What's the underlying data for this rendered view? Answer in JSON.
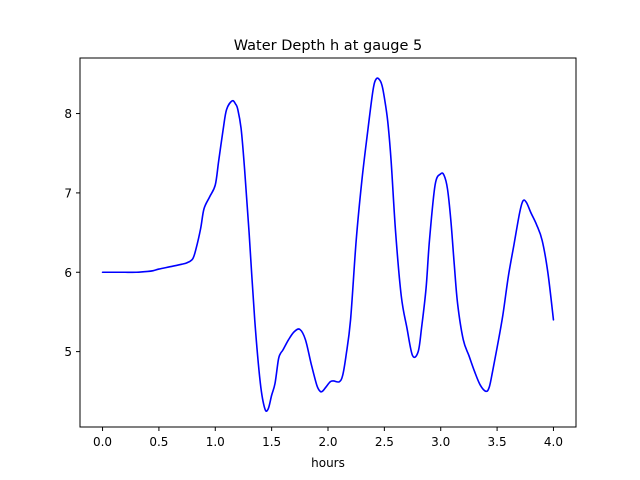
{
  "chart_data": {
    "type": "line",
    "title": "Water Depth h at gauge 5",
    "xlabel": "hours",
    "ylabel": "",
    "xlim": [
      -0.2,
      4.2
    ],
    "ylim": [
      4.05,
      8.7
    ],
    "xticks": [
      0.0,
      0.5,
      1.0,
      1.5,
      2.0,
      2.5,
      3.0,
      3.5,
      4.0
    ],
    "xtick_labels": [
      "0.0",
      "0.5",
      "1.0",
      "1.5",
      "2.0",
      "2.5",
      "3.0",
      "3.5",
      "4.0"
    ],
    "yticks": [
      5,
      6,
      7,
      8
    ],
    "ytick_labels": [
      "5",
      "6",
      "7",
      "8"
    ],
    "grid": false,
    "series": [
      {
        "color": "#0000ff",
        "x": [
          0.0,
          0.1,
          0.2,
          0.3,
          0.4,
          0.45,
          0.5,
          0.6,
          0.7,
          0.75,
          0.8,
          0.83,
          0.87,
          0.9,
          0.95,
          1.0,
          1.03,
          1.07,
          1.1,
          1.15,
          1.18,
          1.2,
          1.23,
          1.26,
          1.3,
          1.35,
          1.4,
          1.44,
          1.47,
          1.5,
          1.53,
          1.56,
          1.58,
          1.6,
          1.65,
          1.7,
          1.75,
          1.8,
          1.85,
          1.9,
          1.93,
          1.95,
          1.98,
          2.02,
          2.05,
          2.1,
          2.13,
          2.16,
          2.2,
          2.25,
          2.3,
          2.35,
          2.4,
          2.43,
          2.46,
          2.48,
          2.5,
          2.53,
          2.56,
          2.6,
          2.65,
          2.7,
          2.75,
          2.8,
          2.83,
          2.87,
          2.9,
          2.95,
          3.0,
          3.03,
          3.06,
          3.09,
          3.12,
          3.15,
          3.2,
          3.25,
          3.3,
          3.35,
          3.4,
          3.43,
          3.46,
          3.5,
          3.55,
          3.6,
          3.65,
          3.7,
          3.73,
          3.76,
          3.8,
          3.85,
          3.9,
          3.95,
          4.0
        ],
        "y": [
          6.0,
          6.0,
          6.0,
          6.0,
          6.01,
          6.02,
          6.04,
          6.07,
          6.1,
          6.12,
          6.17,
          6.3,
          6.55,
          6.8,
          6.95,
          7.1,
          7.4,
          7.8,
          8.05,
          8.16,
          8.12,
          8.05,
          7.8,
          7.3,
          6.5,
          5.4,
          4.6,
          4.28,
          4.28,
          4.45,
          4.6,
          4.9,
          4.98,
          5.02,
          5.15,
          5.25,
          5.28,
          5.15,
          4.85,
          4.58,
          4.5,
          4.5,
          4.55,
          4.62,
          4.63,
          4.62,
          4.7,
          4.95,
          5.4,
          6.4,
          7.15,
          7.75,
          8.3,
          8.44,
          8.42,
          8.35,
          8.2,
          7.9,
          7.4,
          6.5,
          5.7,
          5.3,
          4.95,
          5.0,
          5.3,
          5.8,
          6.4,
          7.1,
          7.24,
          7.22,
          7.05,
          6.65,
          6.1,
          5.6,
          5.15,
          4.95,
          4.75,
          4.58,
          4.5,
          4.55,
          4.75,
          5.05,
          5.45,
          5.95,
          6.35,
          6.75,
          6.9,
          6.88,
          6.75,
          6.6,
          6.4,
          6.0,
          5.4
        ]
      }
    ]
  }
}
